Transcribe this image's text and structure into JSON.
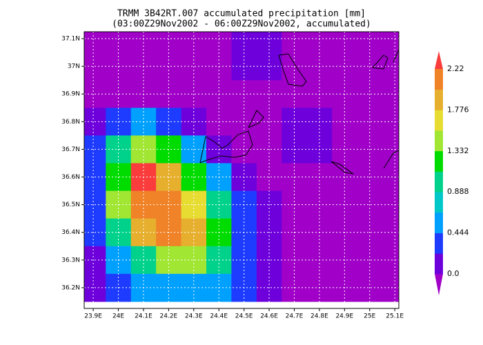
{
  "chart_data": {
    "type": "contour",
    "title": "TRMM 3B42RT.007 accumulated precipitation [mm]",
    "subtitle": "(03:00Z29Nov2002 - 06:00Z29Nov2002, accumulated)",
    "xlim": [
      23.864,
      25.116
    ],
    "ylim": [
      36.125,
      37.125
    ],
    "xticks": [
      {
        "value": 23.9,
        "label": "23.9E"
      },
      {
        "value": 24,
        "label": "24E"
      },
      {
        "value": 24.1,
        "label": "24.1E"
      },
      {
        "value": 24.2,
        "label": "24.2E"
      },
      {
        "value": 24.3,
        "label": "24.3E"
      },
      {
        "value": 24.4,
        "label": "24.4E"
      },
      {
        "value": 24.5,
        "label": "24.5E"
      },
      {
        "value": 24.6,
        "label": "24.6E"
      },
      {
        "value": 24.7,
        "label": "24.7E"
      },
      {
        "value": 24.8,
        "label": "24.8E"
      },
      {
        "value": 24.9,
        "label": "24.9E"
      },
      {
        "value": 25,
        "label": "25E"
      },
      {
        "value": 25.1,
        "label": "25.1E"
      }
    ],
    "yticks": [
      {
        "value": 36.2,
        "label": "36.2N"
      },
      {
        "value": 36.3,
        "label": "36.3N"
      },
      {
        "value": 36.4,
        "label": "36.4N"
      },
      {
        "value": 36.5,
        "label": "36.5N"
      },
      {
        "value": 36.6,
        "label": "36.6N"
      },
      {
        "value": 36.7,
        "label": "36.7N"
      },
      {
        "value": 36.8,
        "label": "36.8N"
      },
      {
        "value": 36.9,
        "label": "36.9N"
      },
      {
        "value": 37,
        "label": "37N"
      },
      {
        "value": 37.1,
        "label": "37.1N"
      }
    ],
    "grid": true,
    "x": [
      23.9,
      24.0,
      24.1,
      24.2,
      24.3,
      24.4,
      24.5,
      24.6,
      24.7,
      24.8,
      24.9,
      25.0,
      25.1
    ],
    "y": [
      37.1,
      37.0,
      36.9,
      36.8,
      36.7,
      36.6,
      36.5,
      36.4,
      36.3,
      36.2
    ],
    "z": [
      [
        0,
        0,
        0,
        0,
        0,
        0,
        0.1,
        0.1,
        0,
        0,
        0,
        0,
        0
      ],
      [
        0,
        0,
        0,
        0,
        0,
        0,
        0.1,
        0.1,
        0,
        0,
        0,
        0,
        0
      ],
      [
        0,
        0,
        0,
        0,
        0,
        0,
        0,
        0,
        0,
        0,
        0,
        0,
        0
      ],
      [
        0.1,
        0.3,
        0.5,
        0.4,
        0.2,
        0,
        0,
        0,
        0.1,
        0.1,
        0,
        0,
        0
      ],
      [
        0.3,
        0.9,
        1.5,
        1.3,
        0.6,
        0.2,
        0,
        0,
        0.1,
        0.1,
        0,
        0,
        0
      ],
      [
        0.4,
        1.3,
        2.3,
        1.9,
        1.2,
        0.5,
        0.1,
        0,
        0,
        0,
        0,
        0,
        0
      ],
      [
        0.4,
        1.4,
        2.1,
        2.1,
        1.6,
        0.9,
        0.3,
        0.1,
        0,
        0,
        0,
        0,
        0
      ],
      [
        0.3,
        1.1,
        1.8,
        2.0,
        1.9,
        1.2,
        0.4,
        0.1,
        0,
        0,
        0,
        0,
        0
      ],
      [
        0.2,
        0.6,
        1.1,
        1.4,
        1.4,
        1.0,
        0.4,
        0.1,
        0,
        0,
        0,
        0,
        0
      ],
      [
        0.1,
        0.3,
        0.5,
        0.6,
        0.6,
        0.5,
        0.3,
        0.1,
        0,
        0,
        0,
        0,
        0
      ]
    ],
    "levels": [
      0,
      0.222,
      0.444,
      0.666,
      0.888,
      1.11,
      1.332,
      1.554,
      1.776,
      1.998,
      2.22
    ],
    "level_ticks": [
      {
        "value": 0,
        "label": "0.0"
      },
      0.444,
      0.888,
      1.332,
      1.776,
      2.22
    ],
    "colors": [
      "#a000c8",
      "#6e00dc",
      "#1e3cff",
      "#00a0ff",
      "#00c8c8",
      "#00d28c",
      "#00dc00",
      "#a0e632",
      "#e6dc32",
      "#e6af2d",
      "#f08228",
      "#fa3c3c"
    ]
  }
}
